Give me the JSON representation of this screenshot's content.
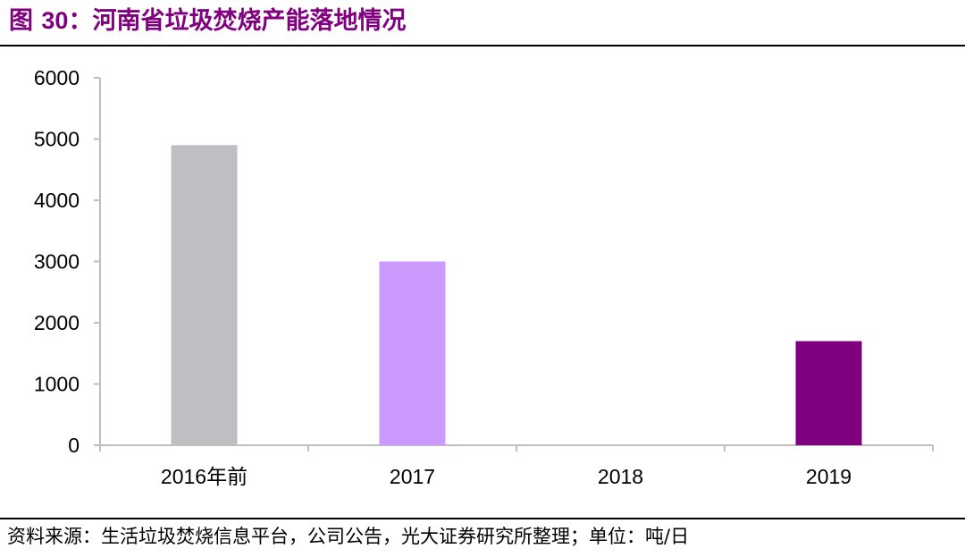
{
  "figure": {
    "label": "图 ",
    "number": "30",
    "title": "：河南省垃圾焚烧产能落地情况"
  },
  "source_note": "资料来源：生活垃圾焚烧信息平台，公司公告，光大证券研究所整理；单位：吨/日",
  "chart_data": {
    "type": "bar",
    "categories": [
      "2016年前",
      "2017",
      "2018",
      "2019"
    ],
    "values": [
      4900,
      3000,
      0,
      1700
    ],
    "colors": [
      "#C0BEC2",
      "#CC99FF",
      "#CC99FF",
      "#800080"
    ],
    "ylim": [
      0,
      6000
    ],
    "yticks": [
      0,
      1000,
      2000,
      3000,
      4000,
      5000,
      6000
    ],
    "grid": false,
    "legend": "none"
  }
}
